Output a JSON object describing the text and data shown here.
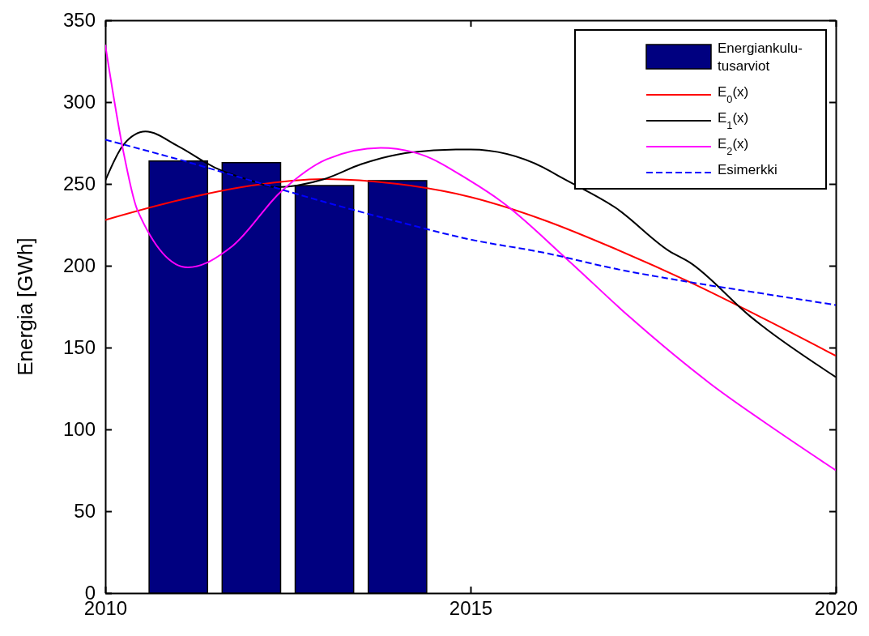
{
  "chart_data": {
    "type": "bar",
    "ylabel": "Energia [GWh]",
    "xlim": [
      2010,
      2020
    ],
    "xticks": [
      2010,
      2015,
      2020
    ],
    "ylim": [
      0,
      350
    ],
    "yticks": [
      0,
      50,
      100,
      150,
      200,
      250,
      300,
      350
    ],
    "legend": "top right",
    "series": [
      {
        "name": "Energiankulu-\ntusarviot",
        "color": "#000080",
        "x": [
          2011,
          2012,
          2013,
          2014
        ],
        "values": [
          264,
          263,
          249,
          252
        ]
      },
      {
        "name": "E$_{0}$(x)",
        "type": "line",
        "color": "#ff0000",
        "line_style": "solid",
        "x": [
          2010,
          2011,
          2012,
          2013,
          2014,
          2015,
          2016,
          2017,
          2018,
          2019,
          2020
        ],
        "values": [
          228,
          240,
          249,
          253,
          250,
          242,
          228,
          210,
          190,
          168,
          145
        ]
      },
      {
        "name": "E$_{1}$(x)",
        "type": "line",
        "color": "#000000",
        "line_style": "solid",
        "x": [
          2010,
          2010.25,
          2010.55,
          2011,
          2011.5,
          2012,
          2012.33,
          2013,
          2013.5,
          2014,
          2014.8,
          2015,
          2016,
          2016.24,
          2017,
          2017.72,
          2018,
          2018.83,
          2019,
          2020
        ],
        "values": [
          252,
          274,
          282,
          273,
          260,
          252,
          248,
          253,
          262,
          268,
          271,
          271,
          260,
          254,
          235,
          209,
          202,
          169,
          163,
          132
        ]
      },
      {
        "name": "E$_{2}$(x)",
        "type": "line",
        "color": "#ff00ff",
        "line_style": "solid",
        "x": [
          2010,
          2010.26,
          2010.44,
          2011.13,
          2011.74,
          2012.4,
          2013.03,
          2013.77,
          2014.32,
          2014.99,
          2015.43,
          2016.32,
          2017.17,
          2018.28,
          2019.2,
          2020
        ],
        "values": [
          335,
          267,
          234,
          199,
          212,
          245,
          265,
          272,
          268,
          252,
          239,
          204,
          169,
          128,
          99,
          75
        ]
      },
      {
        "name": "Esimerkki",
        "type": "line",
        "color": "#0000ff",
        "line_style": "dashed",
        "x": [
          2010,
          2011,
          2012,
          2013,
          2014,
          2015,
          2016,
          2017,
          2018,
          2019,
          2020
        ],
        "values": [
          277,
          265,
          252,
          239,
          227,
          216,
          208,
          198,
          190,
          183,
          176
        ]
      }
    ]
  }
}
